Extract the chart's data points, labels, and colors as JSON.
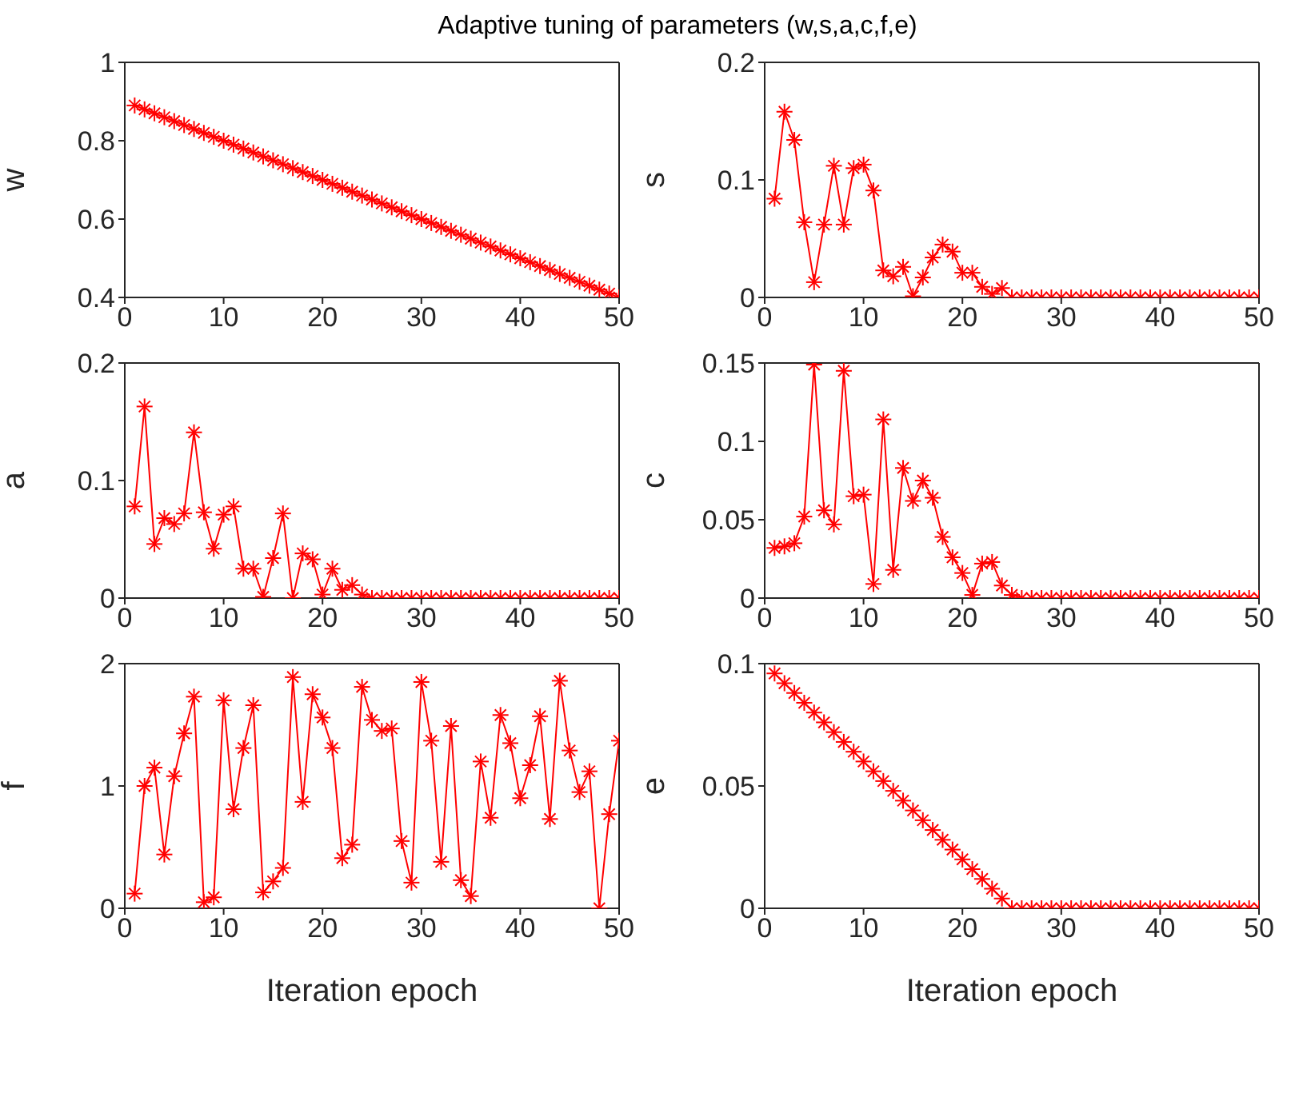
{
  "chart_data": [
    {
      "type": "line",
      "title": "Adaptive tuning of parameters (w,s,a,c,f,e)",
      "ylabel": "w",
      "marker": "cross",
      "xlim": [
        0,
        50
      ],
      "xticks": [
        0,
        10,
        20,
        30,
        40,
        50
      ],
      "ylim": [
        0.4,
        1
      ],
      "yticks": [
        0.4,
        0.6,
        0.8,
        1
      ],
      "x": [
        1,
        2,
        3,
        4,
        5,
        6,
        7,
        8,
        9,
        10,
        11,
        12,
        13,
        14,
        15,
        16,
        17,
        18,
        19,
        20,
        21,
        22,
        23,
        24,
        25,
        26,
        27,
        28,
        29,
        30,
        31,
        32,
        33,
        34,
        35,
        36,
        37,
        38,
        39,
        40,
        41,
        42,
        43,
        44,
        45,
        46,
        47,
        48,
        49,
        50
      ],
      "series": [
        {
          "color": "#ff0000",
          "values": [
            0.89,
            0.88,
            0.87,
            0.86,
            0.85,
            0.84,
            0.83,
            0.82,
            0.81,
            0.8,
            0.79,
            0.78,
            0.77,
            0.76,
            0.75,
            0.74,
            0.73,
            0.72,
            0.71,
            0.7,
            0.69,
            0.68,
            0.67,
            0.66,
            0.65,
            0.64,
            0.63,
            0.62,
            0.61,
            0.6,
            0.59,
            0.58,
            0.57,
            0.56,
            0.55,
            0.54,
            0.53,
            0.52,
            0.51,
            0.5,
            0.49,
            0.48,
            0.47,
            0.46,
            0.45,
            0.44,
            0.43,
            0.42,
            0.41,
            0.4
          ]
        }
      ]
    },
    {
      "type": "line",
      "ylabel": "s",
      "marker": "cross",
      "xlim": [
        0,
        50
      ],
      "xticks": [
        0,
        10,
        20,
        30,
        40,
        50
      ],
      "ylim": [
        0,
        0.2
      ],
      "yticks": [
        0,
        0.1,
        0.2
      ],
      "x": [
        1,
        2,
        3,
        4,
        5,
        6,
        7,
        8,
        9,
        10,
        11,
        12,
        13,
        14,
        15,
        16,
        17,
        18,
        19,
        20,
        21,
        22,
        23,
        24,
        25,
        26,
        27,
        28,
        29,
        30,
        31,
        32,
        33,
        34,
        35,
        36,
        37,
        38,
        39,
        40,
        41,
        42,
        43,
        44,
        45,
        46,
        47,
        48,
        49,
        50
      ],
      "series": [
        {
          "color": "#ff0000",
          "values": [
            0.084,
            0.158,
            0.134,
            0.064,
            0.013,
            0.062,
            0.112,
            0.062,
            0.11,
            0.113,
            0.091,
            0.023,
            0.018,
            0.026,
            0.001,
            0.017,
            0.034,
            0.045,
            0.039,
            0.021,
            0.021,
            0.009,
            0.003,
            0.008,
            0,
            0,
            0,
            0,
            0,
            0,
            0,
            0,
            0,
            0,
            0,
            0,
            0,
            0,
            0,
            0,
            0,
            0,
            0,
            0,
            0,
            0,
            0,
            0,
            0,
            0
          ]
        }
      ]
    },
    {
      "type": "line",
      "ylabel": "a",
      "marker": "cross",
      "xlim": [
        0,
        50
      ],
      "xticks": [
        0,
        10,
        20,
        30,
        40,
        50
      ],
      "ylim": [
        0,
        0.2
      ],
      "yticks": [
        0,
        0.1,
        0.2
      ],
      "x": [
        1,
        2,
        3,
        4,
        5,
        6,
        7,
        8,
        9,
        10,
        11,
        12,
        13,
        14,
        15,
        16,
        17,
        18,
        19,
        20,
        21,
        22,
        23,
        24,
        25,
        26,
        27,
        28,
        29,
        30,
        31,
        32,
        33,
        34,
        35,
        36,
        37,
        38,
        39,
        40,
        41,
        42,
        43,
        44,
        45,
        46,
        47,
        48,
        49,
        50
      ],
      "series": [
        {
          "color": "#ff0000",
          "values": [
            0.078,
            0.163,
            0.046,
            0.068,
            0.063,
            0.072,
            0.141,
            0.073,
            0.042,
            0.071,
            0.078,
            0.025,
            0.025,
            0.001,
            0.034,
            0.072,
            0,
            0.038,
            0.033,
            0.003,
            0.025,
            0.007,
            0.011,
            0.003,
            0,
            0,
            0,
            0,
            0,
            0,
            0,
            0,
            0,
            0,
            0,
            0,
            0,
            0,
            0,
            0,
            0,
            0,
            0,
            0,
            0,
            0,
            0,
            0,
            0,
            0
          ]
        }
      ]
    },
    {
      "type": "line",
      "ylabel": "c",
      "marker": "cross",
      "xlim": [
        0,
        50
      ],
      "xticks": [
        0,
        10,
        20,
        30,
        40,
        50
      ],
      "ylim": [
        0,
        0.15
      ],
      "yticks": [
        0,
        0.05,
        0.1,
        0.15
      ],
      "x": [
        1,
        2,
        3,
        4,
        5,
        6,
        7,
        8,
        9,
        10,
        11,
        12,
        13,
        14,
        15,
        16,
        17,
        18,
        19,
        20,
        21,
        22,
        23,
        24,
        25,
        26,
        27,
        28,
        29,
        30,
        31,
        32,
        33,
        34,
        35,
        36,
        37,
        38,
        39,
        40,
        41,
        42,
        43,
        44,
        45,
        46,
        47,
        48,
        49,
        50
      ],
      "series": [
        {
          "color": "#ff0000",
          "values": [
            0.032,
            0.033,
            0.035,
            0.052,
            0.149,
            0.056,
            0.047,
            0.145,
            0.065,
            0.066,
            0.009,
            0.114,
            0.018,
            0.083,
            0.062,
            0.075,
            0.064,
            0.039,
            0.026,
            0.016,
            0.002,
            0.022,
            0.023,
            0.008,
            0.002,
            0,
            0,
            0,
            0,
            0,
            0,
            0,
            0,
            0,
            0,
            0,
            0,
            0,
            0,
            0,
            0,
            0,
            0,
            0,
            0,
            0,
            0,
            0,
            0,
            0
          ]
        }
      ]
    },
    {
      "type": "line",
      "ylabel": "f",
      "xlabel": "Iteration epoch",
      "marker": "cross",
      "xlim": [
        0,
        50
      ],
      "xticks": [
        0,
        10,
        20,
        30,
        40,
        50
      ],
      "ylim": [
        0,
        2
      ],
      "yticks": [
        0,
        1,
        2
      ],
      "x": [
        1,
        2,
        3,
        4,
        5,
        6,
        7,
        8,
        9,
        10,
        11,
        12,
        13,
        14,
        15,
        16,
        17,
        18,
        19,
        20,
        21,
        22,
        23,
        24,
        25,
        26,
        27,
        28,
        29,
        30,
        31,
        32,
        33,
        34,
        35,
        36,
        37,
        38,
        39,
        40,
        41,
        42,
        43,
        44,
        45,
        46,
        47,
        48,
        49,
        50
      ],
      "series": [
        {
          "color": "#ff0000",
          "values": [
            0.12,
            1.0,
            1.15,
            0.44,
            1.08,
            1.43,
            1.73,
            0.05,
            0.09,
            1.7,
            0.81,
            1.31,
            1.66,
            0.13,
            0.22,
            0.33,
            1.89,
            0.87,
            1.75,
            1.56,
            1.31,
            0.41,
            0.52,
            1.81,
            1.54,
            1.45,
            1.47,
            0.55,
            0.21,
            1.85,
            1.37,
            0.38,
            1.49,
            0.23,
            0.1,
            1.2,
            0.74,
            1.58,
            1.35,
            0.9,
            1.17,
            1.57,
            0.73,
            1.86,
            1.29,
            0.95,
            1.12,
            0,
            0.77,
            1.37
          ]
        }
      ]
    },
    {
      "type": "line",
      "ylabel": "e",
      "xlabel": "Iteration epoch",
      "marker": "cross",
      "xlim": [
        0,
        50
      ],
      "xticks": [
        0,
        10,
        20,
        30,
        40,
        50
      ],
      "ylim": [
        0,
        0.1
      ],
      "yticks": [
        0,
        0.05,
        0.1
      ],
      "x": [
        1,
        2,
        3,
        4,
        5,
        6,
        7,
        8,
        9,
        10,
        11,
        12,
        13,
        14,
        15,
        16,
        17,
        18,
        19,
        20,
        21,
        22,
        23,
        24,
        25,
        26,
        27,
        28,
        29,
        30,
        31,
        32,
        33,
        34,
        35,
        36,
        37,
        38,
        39,
        40,
        41,
        42,
        43,
        44,
        45,
        46,
        47,
        48,
        49,
        50
      ],
      "series": [
        {
          "color": "#ff0000",
          "values": [
            0.096,
            0.092,
            0.088,
            0.084,
            0.08,
            0.076,
            0.072,
            0.068,
            0.064,
            0.06,
            0.056,
            0.052,
            0.048,
            0.044,
            0.04,
            0.036,
            0.032,
            0.028,
            0.024,
            0.02,
            0.016,
            0.012,
            0.008,
            0.004,
            0,
            0,
            0,
            0,
            0,
            0,
            0,
            0,
            0,
            0,
            0,
            0,
            0,
            0,
            0,
            0,
            0,
            0,
            0,
            0,
            0,
            0,
            0,
            0,
            0,
            0
          ]
        }
      ]
    }
  ]
}
